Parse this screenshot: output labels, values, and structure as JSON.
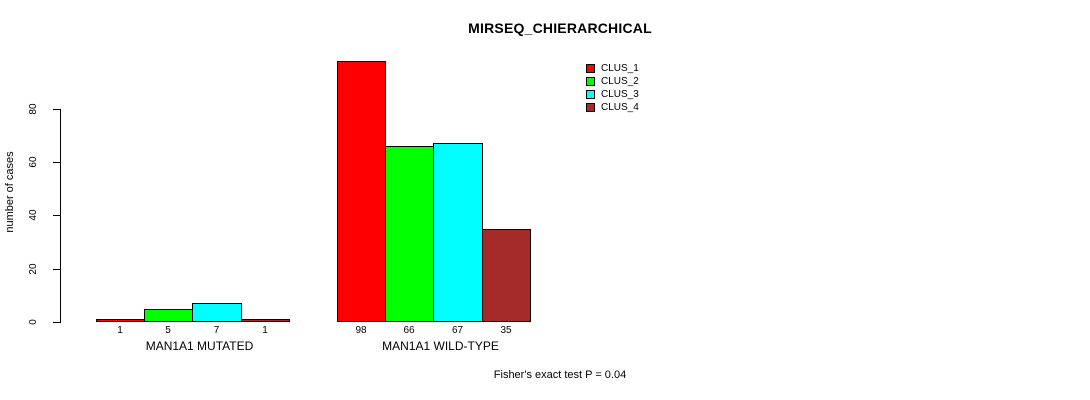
{
  "chart_data": {
    "type": "bar",
    "title": "MIRSEQ_CHIERARCHICAL",
    "xlabel": "",
    "ylabel": "number of cases",
    "ylim": [
      0,
      98
    ],
    "yticks": [
      0,
      20,
      40,
      60,
      80
    ],
    "grid": false,
    "legend_position": "top-right",
    "bar_value_labels_shown": true,
    "categories": [
      "MAN1A1 MUTATED",
      "MAN1A1 WILD-TYPE"
    ],
    "series": [
      {
        "name": "CLUS_1",
        "color": "#FF0000",
        "values": [
          1,
          98
        ]
      },
      {
        "name": "CLUS_2",
        "color": "#00FF00",
        "values": [
          5,
          66
        ]
      },
      {
        "name": "CLUS_3",
        "color": "#00FFFF",
        "values": [
          7,
          67
        ]
      },
      {
        "name": "CLUS_4",
        "color": "#A52A2A",
        "values": [
          1,
          35
        ]
      }
    ],
    "groups": [
      {
        "label": "MAN1A1 MUTATED",
        "values": [
          1,
          5,
          7,
          1
        ]
      },
      {
        "label": "MAN1A1 WILD-TYPE",
        "values": [
          98,
          66,
          67,
          35
        ]
      }
    ],
    "annotation": "Fisher's exact test P = 0.04"
  }
}
